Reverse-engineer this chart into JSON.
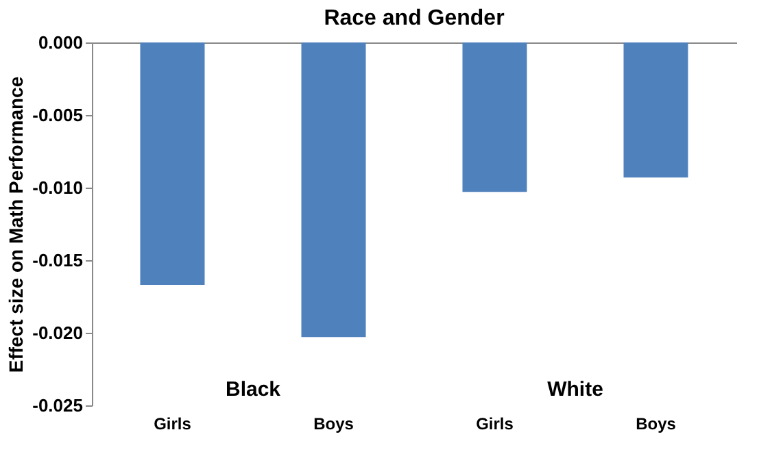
{
  "chart_data": {
    "type": "bar",
    "title": "Race and Gender",
    "ylabel": "Effect size on Math Performance",
    "categories": [
      "Girls",
      "Boys",
      "Girls",
      "Boys"
    ],
    "values": [
      -0.0167,
      -0.0203,
      -0.0103,
      -0.0093
    ],
    "color": "#4f81bd",
    "ylim": [
      -0.025,
      0
    ],
    "yticks": [
      {
        "value": -0.025,
        "label": "-0.025"
      },
      {
        "value": -0.02,
        "label": "-0.020"
      },
      {
        "value": -0.015,
        "label": "-0.015"
      },
      {
        "value": -0.01,
        "label": "-0.010"
      },
      {
        "value": -0.005,
        "label": "-0.005"
      },
      {
        "value": 0,
        "label": "0.000"
      }
    ],
    "annotations": [
      "Black",
      "White"
    ],
    "grid": false
  }
}
